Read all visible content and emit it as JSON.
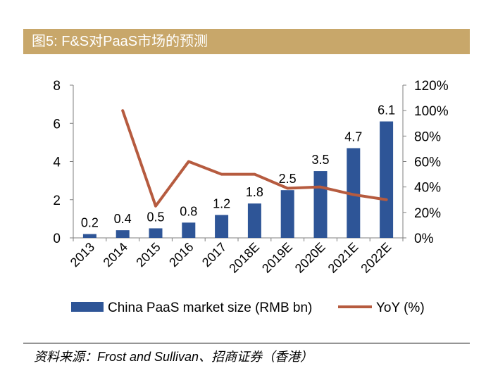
{
  "figure": {
    "title": "图5: F&S对PaaS市场的预测",
    "source": "资料来源：Frost and Sullivan、招商证券（香港）"
  },
  "colors": {
    "bar": "#2e5597",
    "line": "#b65b3f",
    "title_bg": "#c8a76a"
  },
  "chart_data": {
    "type": "bar",
    "title": "图5: F&S对PaaS市场的预测",
    "categories": [
      "2013",
      "2014",
      "2015",
      "2016",
      "2017",
      "2018E",
      "2019E",
      "2020E",
      "2021E",
      "2022E"
    ],
    "series": [
      {
        "name": "China PaaS market size (RMB bn)",
        "type": "bar",
        "axis": "left",
        "values": [
          0.2,
          0.4,
          0.5,
          0.8,
          1.2,
          1.8,
          2.5,
          3.5,
          4.7,
          6.1
        ],
        "labels": [
          "0.2",
          "0.4",
          "0.5",
          "0.8",
          "1.2",
          "1.8",
          "2.5",
          "3.5",
          "4.7",
          "6.1"
        ]
      },
      {
        "name": "YoY (%)",
        "type": "line",
        "axis": "right",
        "values": [
          null,
          100,
          25,
          60,
          50,
          50,
          39,
          40,
          34,
          30
        ]
      }
    ],
    "yleft": {
      "lim": [
        0,
        8
      ],
      "ticks": [
        0,
        2,
        4,
        6,
        8
      ],
      "tick_labels": [
        "0",
        "2",
        "4",
        "6",
        "8"
      ]
    },
    "yright": {
      "lim": [
        0,
        120
      ],
      "ticks": [
        0,
        20,
        40,
        60,
        80,
        100,
        120
      ],
      "tick_labels": [
        "0%",
        "20%",
        "40%",
        "60%",
        "80%",
        "100%",
        "120%"
      ]
    },
    "legend": {
      "position": "bottom",
      "entries": [
        "China PaaS market size (RMB bn)",
        "YoY (%)"
      ]
    },
    "grid": false
  }
}
